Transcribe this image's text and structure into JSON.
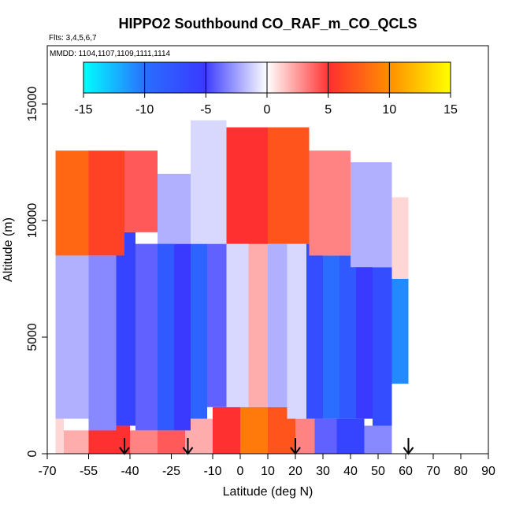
{
  "chart_data": {
    "type": "heatmap",
    "title": "HIPPO2 Southbound CO_RAF_m_CO_QCLS",
    "subtitle_flights": "Flts: 3,4,5,6,7",
    "subtitle_dates": "MMDD: 1104,1107,1109,1111,1114",
    "xlabel": "Latitude (deg N)",
    "ylabel": "Altitude (m)",
    "xlim": [
      -70,
      90
    ],
    "ylim": [
      0,
      17500
    ],
    "x_ticks": [
      -70,
      -55,
      -40,
      -25,
      -10,
      0,
      10,
      20,
      30,
      40,
      50,
      60,
      70,
      80,
      90
    ],
    "x_tick_labels": [
      "-70",
      "-55",
      "-40",
      "-25",
      "-10",
      "0",
      "10",
      "20",
      "30",
      "40",
      "50",
      "60",
      "70",
      "80",
      "90"
    ],
    "y_ticks": [
      0,
      5000,
      10000,
      15000
    ],
    "y_tick_labels": [
      "0",
      "5000",
      "10000",
      "15000"
    ],
    "colorbar": {
      "min": -15,
      "max": 15,
      "ticks": [
        -15,
        -10,
        -5,
        0,
        5,
        10,
        15
      ],
      "tick_labels": [
        "-15",
        "-10",
        "-5",
        "0",
        "5",
        "10",
        "15"
      ],
      "colors": [
        "#00ffff",
        "#2a6dff",
        "#3a3aff",
        "#ffffff",
        "#ff3030",
        "#ff8c00",
        "#ffff00"
      ]
    },
    "arrows_latitude": [
      -42,
      -19,
      20,
      61
    ],
    "cells": [
      {
        "lat": [
          -67,
          -64
        ],
        "alt": [
          0,
          1500
        ],
        "value": 1
      },
      {
        "lat": [
          -64,
          -55
        ],
        "alt": [
          0,
          1000
        ],
        "value": 2
      },
      {
        "lat": [
          -55,
          -40
        ],
        "alt": [
          0,
          1200
        ],
        "value": 5
      },
      {
        "lat": [
          -40,
          -30
        ],
        "alt": [
          0,
          1000
        ],
        "value": 3
      },
      {
        "lat": [
          -30,
          -20
        ],
        "alt": [
          0,
          1000
        ],
        "value": 4
      },
      {
        "lat": [
          -20,
          -10
        ],
        "alt": [
          0,
          1500
        ],
        "value": 2
      },
      {
        "lat": [
          -10,
          0
        ],
        "alt": [
          0,
          2000
        ],
        "value": 5
      },
      {
        "lat": [
          0,
          10
        ],
        "alt": [
          0,
          2000
        ],
        "value": 9
      },
      {
        "lat": [
          10,
          20
        ],
        "alt": [
          0,
          2000
        ],
        "value": 7
      },
      {
        "lat": [
          20,
          27
        ],
        "alt": [
          0,
          1500
        ],
        "value": 3
      },
      {
        "lat": [
          27,
          35
        ],
        "alt": [
          0,
          1500
        ],
        "value": -4
      },
      {
        "lat": [
          35,
          45
        ],
        "alt": [
          0,
          1500
        ],
        "value": -6
      },
      {
        "lat": [
          45,
          55
        ],
        "alt": [
          0,
          1200
        ],
        "value": -3
      },
      {
        "lat": [
          -67,
          -55
        ],
        "alt": [
          1500,
          8500
        ],
        "value": -2
      },
      {
        "lat": [
          -55,
          -45
        ],
        "alt": [
          1000,
          8500
        ],
        "value": -3
      },
      {
        "lat": [
          -45,
          -38
        ],
        "alt": [
          1200,
          9500
        ],
        "value": -6
      },
      {
        "lat": [
          -38,
          -30
        ],
        "alt": [
          1000,
          9000
        ],
        "value": -4
      },
      {
        "lat": [
          -30,
          -24
        ],
        "alt": [
          1000,
          9500
        ],
        "value": -8
      },
      {
        "lat": [
          -24,
          -18
        ],
        "alt": [
          1000,
          9000
        ],
        "value": -5
      },
      {
        "lat": [
          -18,
          -12
        ],
        "alt": [
          1500,
          9000
        ],
        "value": -9
      },
      {
        "lat": [
          -12,
          -5
        ],
        "alt": [
          2000,
          9000
        ],
        "value": -4
      },
      {
        "lat": [
          -5,
          3
        ],
        "alt": [
          2000,
          9000
        ],
        "value": -1
      },
      {
        "lat": [
          3,
          10
        ],
        "alt": [
          2000,
          9500
        ],
        "value": 2
      },
      {
        "lat": [
          10,
          17
        ],
        "alt": [
          2000,
          9000
        ],
        "value": -2
      },
      {
        "lat": [
          17,
          24
        ],
        "alt": [
          1500,
          9000
        ],
        "value": -1
      },
      {
        "lat": [
          24,
          30
        ],
        "alt": [
          1500,
          9000
        ],
        "value": -7
      },
      {
        "lat": [
          30,
          36
        ],
        "alt": [
          1500,
          8500
        ],
        "value": -10
      },
      {
        "lat": [
          36,
          42
        ],
        "alt": [
          1500,
          8500
        ],
        "value": -8
      },
      {
        "lat": [
          42,
          48
        ],
        "alt": [
          1500,
          8500
        ],
        "value": -5
      },
      {
        "lat": [
          48,
          55
        ],
        "alt": [
          1200,
          8000
        ],
        "value": -7
      },
      {
        "lat": [
          55,
          61
        ],
        "alt": [
          3000,
          7500
        ],
        "value": -11
      },
      {
        "lat": [
          -67,
          -55
        ],
        "alt": [
          8500,
          13000
        ],
        "value": 8
      },
      {
        "lat": [
          -55,
          -42
        ],
        "alt": [
          8500,
          13000
        ],
        "value": 6
      },
      {
        "lat": [
          -42,
          -30
        ],
        "alt": [
          9500,
          13000
        ],
        "value": 4
      },
      {
        "lat": [
          -30,
          -18
        ],
        "alt": [
          9000,
          12000
        ],
        "value": -2
      },
      {
        "lat": [
          -18,
          -5
        ],
        "alt": [
          9000,
          14300
        ],
        "value": -1
      },
      {
        "lat": [
          -5,
          10
        ],
        "alt": [
          9000,
          14000
        ],
        "value": 5
      },
      {
        "lat": [
          10,
          25
        ],
        "alt": [
          9000,
          14000
        ],
        "value": 7
      },
      {
        "lat": [
          25,
          40
        ],
        "alt": [
          8500,
          13000
        ],
        "value": 3
      },
      {
        "lat": [
          40,
          55
        ],
        "alt": [
          8000,
          12500
        ],
        "value": -2
      },
      {
        "lat": [
          55,
          61
        ],
        "alt": [
          7500,
          11000
        ],
        "value": 1
      }
    ]
  }
}
